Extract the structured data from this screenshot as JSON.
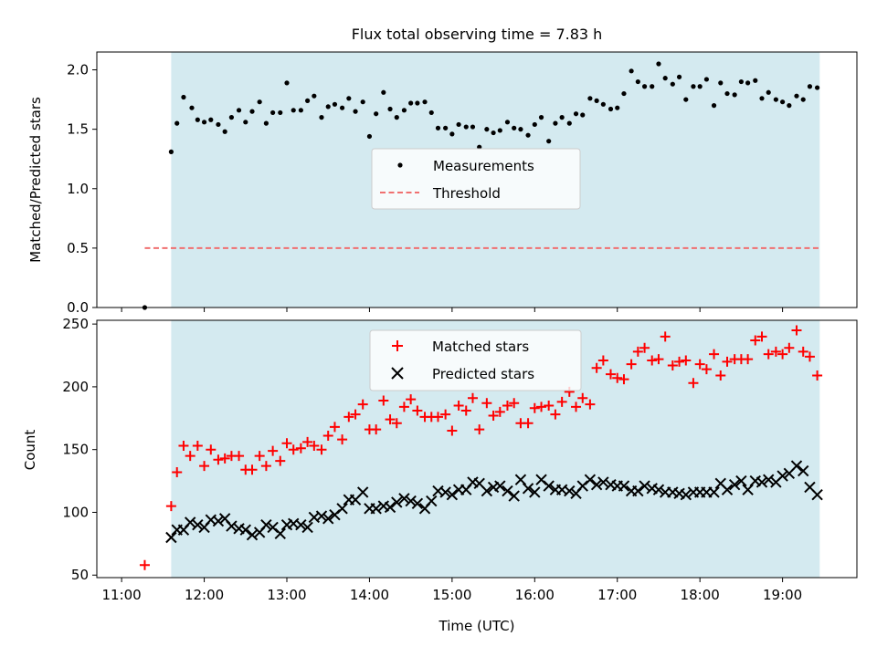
{
  "chart_data": [
    {
      "type": "scatter",
      "title": "Flux total observing time = 7.83 h",
      "ylabel": "Matched/Predicted stars",
      "xlabel": "",
      "ylim": [
        0,
        2.15
      ],
      "yticks": [
        "0.0",
        "0.5",
        "1.0",
        "1.5",
        "2.0"
      ],
      "ytick_values": [
        0,
        0.5,
        1.0,
        1.5,
        2.0
      ],
      "observing_window_hours": [
        11.6,
        19.45
      ],
      "shade_color": "#d4eaf0",
      "legend_placement": "center",
      "series": [
        {
          "name": "Measurements",
          "marker": "dot",
          "color": "#000000",
          "x": [
            11.28,
            11.6,
            11.67,
            11.75,
            11.85,
            11.92,
            12.0,
            12.08,
            12.17,
            12.25,
            12.33,
            12.42,
            12.5,
            12.58,
            12.67,
            12.75,
            12.83,
            12.92,
            13.0,
            13.08,
            13.17,
            13.25,
            13.33,
            13.42,
            13.5,
            13.58,
            13.67,
            13.75,
            13.83,
            13.92,
            14.0,
            14.08,
            14.17,
            14.25,
            14.33,
            14.42,
            14.5,
            14.58,
            14.67,
            14.75,
            14.83,
            14.92,
            15.0,
            15.08,
            15.17,
            15.25,
            15.33,
            15.42,
            15.5,
            15.58,
            15.67,
            15.75,
            15.83,
            15.92,
            16.0,
            16.08,
            16.17,
            16.25,
            16.33,
            16.42,
            16.5,
            16.58,
            16.67,
            16.75,
            16.83,
            16.92,
            17.0,
            17.08,
            17.17,
            17.25,
            17.33,
            17.42,
            17.5,
            17.58,
            17.67,
            17.75,
            17.83,
            17.92,
            18.0,
            18.08,
            18.17,
            18.25,
            18.33,
            18.42,
            18.5,
            18.58,
            18.67,
            18.75,
            18.83,
            18.92,
            19.0,
            19.08,
            19.17,
            19.25,
            19.33,
            19.42
          ],
          "y": [
            0.0,
            1.31,
            1.55,
            1.77,
            1.68,
            1.58,
            1.56,
            1.58,
            1.54,
            1.48,
            1.6,
            1.66,
            1.56,
            1.65,
            1.73,
            1.55,
            1.64,
            1.64,
            1.89,
            1.66,
            1.66,
            1.74,
            1.78,
            1.6,
            1.69,
            1.71,
            1.68,
            1.76,
            1.65,
            1.73,
            1.44,
            1.63,
            1.81,
            1.67,
            1.6,
            1.66,
            1.72,
            1.72,
            1.73,
            1.64,
            1.51,
            1.51,
            1.46,
            1.54,
            1.52,
            1.52,
            1.35,
            1.5,
            1.47,
            1.49,
            1.56,
            1.51,
            1.5,
            1.45,
            1.54,
            1.6,
            1.4,
            1.55,
            1.6,
            1.55,
            1.63,
            1.62,
            1.76,
            1.74,
            1.71,
            1.67,
            1.68,
            1.8,
            1.99,
            1.9,
            1.86,
            1.86,
            2.05,
            1.93,
            1.88,
            1.94,
            1.75,
            1.86,
            1.86,
            1.92,
            1.7,
            1.89,
            1.8,
            1.79,
            1.9,
            1.89,
            1.91,
            1.76,
            1.81,
            1.75,
            1.73,
            1.7,
            1.78,
            1.75,
            1.86,
            1.85
          ]
        },
        {
          "name": "Threshold",
          "marker": "dashed-line",
          "color": "#f07070",
          "x": [
            11.28,
            19.45
          ],
          "y": [
            0.5,
            0.5
          ]
        }
      ]
    },
    {
      "type": "scatter",
      "title": "",
      "ylabel": "Count",
      "xlabel": "Time (UTC)",
      "ylim": [
        48,
        253
      ],
      "yticks": [
        "50",
        "100",
        "150",
        "200",
        "250"
      ],
      "ytick_values": [
        50,
        100,
        150,
        200,
        250
      ],
      "xticks": [
        "11:00",
        "12:00",
        "13:00",
        "14:00",
        "15:00",
        "16:00",
        "17:00",
        "18:00",
        "19:00"
      ],
      "xtick_values": [
        11,
        12,
        13,
        14,
        15,
        16,
        17,
        18,
        19
      ],
      "xlim": [
        10.7,
        19.9
      ],
      "observing_window_hours": [
        11.6,
        19.45
      ],
      "shade_color": "#d4eaf0",
      "legend_placement": "upper-center",
      "series": [
        {
          "name": "Matched stars",
          "marker": "plus",
          "color": "#ff0000",
          "x": [
            11.28,
            11.6,
            11.67,
            11.75,
            11.83,
            11.92,
            12.0,
            12.08,
            12.17,
            12.25,
            12.33,
            12.42,
            12.5,
            12.58,
            12.67,
            12.75,
            12.83,
            12.92,
            13.0,
            13.08,
            13.17,
            13.25,
            13.33,
            13.42,
            13.5,
            13.58,
            13.67,
            13.75,
            13.83,
            13.92,
            14.0,
            14.08,
            14.17,
            14.25,
            14.33,
            14.42,
            14.5,
            14.58,
            14.67,
            14.75,
            14.83,
            14.92,
            15.0,
            15.08,
            15.17,
            15.25,
            15.33,
            15.42,
            15.5,
            15.58,
            15.67,
            15.75,
            15.83,
            15.92,
            16.0,
            16.08,
            16.17,
            16.25,
            16.33,
            16.42,
            16.5,
            16.58,
            16.67,
            16.75,
            16.83,
            16.92,
            17.0,
            17.08,
            17.17,
            17.25,
            17.33,
            17.42,
            17.5,
            17.58,
            17.67,
            17.75,
            17.83,
            17.92,
            18.0,
            18.08,
            18.17,
            18.25,
            18.33,
            18.42,
            18.5,
            18.58,
            18.67,
            18.75,
            18.83,
            18.92,
            19.0,
            19.08,
            19.17,
            19.25,
            19.33,
            19.42
          ],
          "y": [
            58,
            105,
            132,
            153,
            145,
            153,
            137,
            150,
            142,
            143,
            145,
            145,
            134,
            134,
            145,
            137,
            149,
            141,
            155,
            150,
            151,
            156,
            153,
            150,
            161,
            168,
            158,
            176,
            178,
            186,
            166,
            166,
            189,
            174,
            171,
            184,
            190,
            181,
            176,
            176,
            176,
            178,
            165,
            185,
            181,
            191,
            166,
            187,
            177,
            180,
            185,
            187,
            171,
            171,
            183,
            184,
            185,
            178,
            188,
            196,
            184,
            191,
            186,
            215,
            221,
            210,
            207,
            206,
            218,
            228,
            231,
            221,
            222,
            240,
            217,
            220,
            221,
            203,
            218,
            214,
            226,
            209,
            220,
            222,
            222,
            222,
            237,
            240,
            226,
            228,
            226,
            231,
            245,
            228,
            224,
            209
          ]
        },
        {
          "name": "Predicted stars",
          "marker": "x",
          "color": "#000000",
          "x": [
            11.6,
            11.67,
            11.75,
            11.83,
            11.92,
            12.0,
            12.08,
            12.17,
            12.25,
            12.33,
            12.42,
            12.5,
            12.58,
            12.67,
            12.75,
            12.83,
            12.92,
            13.0,
            13.08,
            13.17,
            13.25,
            13.33,
            13.42,
            13.5,
            13.58,
            13.67,
            13.75,
            13.83,
            13.92,
            14.0,
            14.08,
            14.17,
            14.25,
            14.33,
            14.42,
            14.5,
            14.58,
            14.67,
            14.75,
            14.83,
            14.92,
            15.0,
            15.08,
            15.17,
            15.25,
            15.33,
            15.42,
            15.5,
            15.58,
            15.67,
            15.75,
            15.83,
            15.92,
            16.0,
            16.08,
            16.17,
            16.25,
            16.33,
            16.42,
            16.5,
            16.58,
            16.67,
            16.75,
            16.83,
            16.92,
            17.0,
            17.08,
            17.17,
            17.25,
            17.33,
            17.42,
            17.5,
            17.58,
            17.67,
            17.75,
            17.83,
            17.92,
            18.0,
            18.08,
            18.17,
            18.25,
            18.33,
            18.42,
            18.5,
            18.58,
            18.67,
            18.75,
            18.83,
            18.92,
            19.0,
            19.08,
            19.17,
            19.25,
            19.33,
            19.42
          ],
          "y": [
            80,
            86,
            86,
            92,
            90,
            88,
            94,
            93,
            95,
            89,
            87,
            86,
            82,
            84,
            90,
            88,
            83,
            90,
            91,
            90,
            88,
            96,
            97,
            95,
            98,
            103,
            110,
            110,
            116,
            103,
            103,
            105,
            104,
            108,
            111,
            109,
            107,
            103,
            109,
            117,
            116,
            114,
            118,
            118,
            124,
            123,
            117,
            120,
            121,
            117,
            113,
            126,
            119,
            116,
            126,
            121,
            118,
            118,
            117,
            115,
            121,
            126,
            122,
            124,
            122,
            121,
            121,
            117,
            117,
            121,
            119,
            118,
            116,
            116,
            115,
            114,
            116,
            116,
            116,
            116,
            123,
            118,
            122,
            125,
            118,
            125,
            124,
            126,
            124,
            129,
            131,
            137,
            133,
            120,
            114
          ]
        }
      ]
    }
  ]
}
